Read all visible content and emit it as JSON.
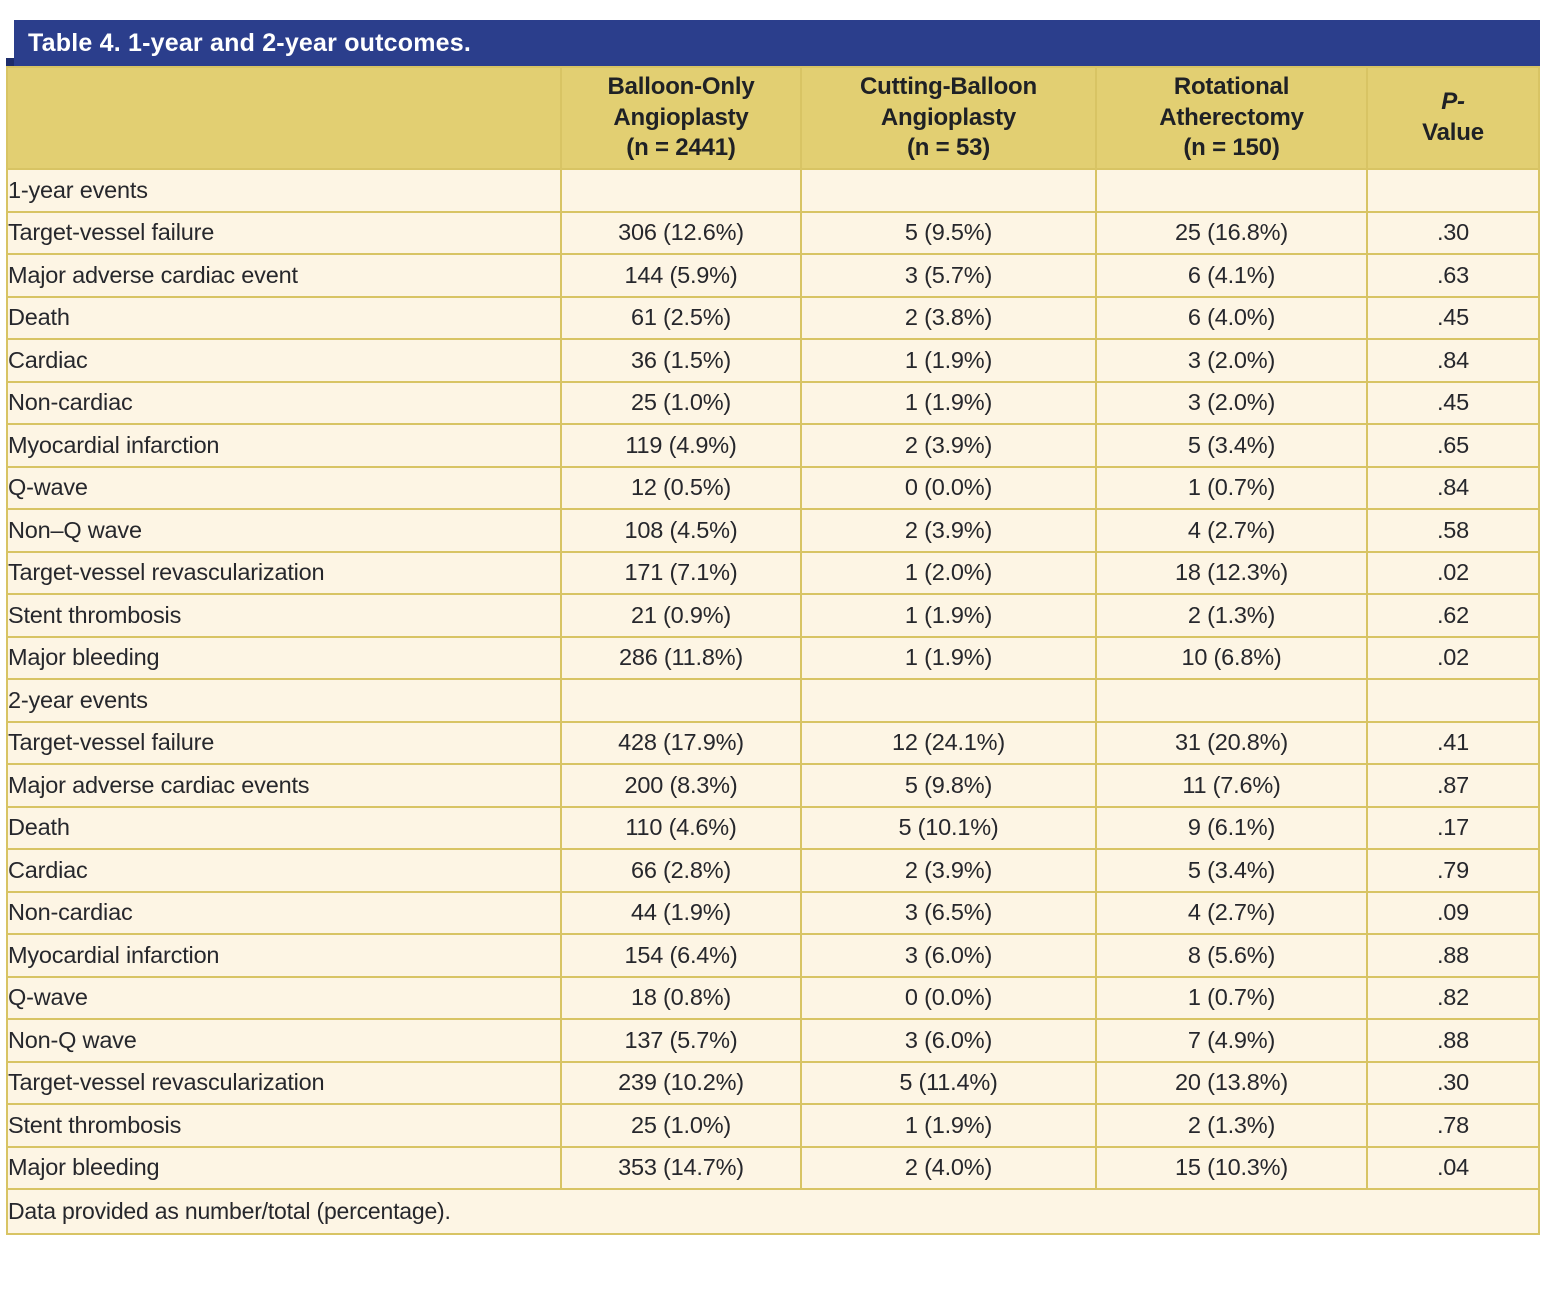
{
  "title": "Table 4. 1-year and 2-year outcomes.",
  "colors": {
    "title_bar_blue": "#2B3E8C",
    "title_fold_blue": "#1E2D6B",
    "header_gold": "#E2CF72",
    "row_cream": "#FDF5E4",
    "border_gold": "#D8C464",
    "text": "#26272C"
  },
  "chart_data": {
    "type": "table",
    "title": "Table 4. 1-year and 2-year outcomes.",
    "columns": [
      {
        "lines": [
          ""
        ],
        "italic_first_line": false
      },
      {
        "lines": [
          "Balloon-Only",
          "Angioplasty",
          "(n = 2441)"
        ],
        "italic_first_line": false
      },
      {
        "lines": [
          "Cutting-Balloon",
          "Angioplasty",
          "(n = 53)"
        ],
        "italic_first_line": false
      },
      {
        "lines": [
          "Rotational",
          "Atherectomy",
          "(n = 150)"
        ],
        "italic_first_line": false
      },
      {
        "lines": [
          "P-",
          "Value"
        ],
        "italic_first_line": true
      }
    ],
    "rows": [
      {
        "type": "section",
        "indent": 0,
        "label": "1-year events",
        "values": [
          "",
          "",
          "",
          ""
        ]
      },
      {
        "type": "data",
        "indent": 1,
        "label": "Target-vessel failure",
        "values": [
          "306 (12.6%)",
          "5 (9.5%)",
          "25 (16.8%)",
          ".30"
        ]
      },
      {
        "type": "data",
        "indent": 1,
        "label": "Major adverse cardiac event",
        "values": [
          "144 (5.9%)",
          "3 (5.7%)",
          "6 (4.1%)",
          ".63"
        ]
      },
      {
        "type": "data",
        "indent": 1,
        "label": "Death",
        "values": [
          "61 (2.5%)",
          "2 (3.8%)",
          "6 (4.0%)",
          ".45"
        ]
      },
      {
        "type": "data",
        "indent": 2,
        "label": "Cardiac",
        "values": [
          "36 (1.5%)",
          "1 (1.9%)",
          "3 (2.0%)",
          ".84"
        ]
      },
      {
        "type": "data",
        "indent": 2,
        "label": "Non-cardiac",
        "values": [
          "25 (1.0%)",
          "1 (1.9%)",
          "3 (2.0%)",
          ".45"
        ]
      },
      {
        "type": "data",
        "indent": 1,
        "label": "Myocardial infarction",
        "values": [
          "119 (4.9%)",
          "2 (3.9%)",
          "5 (3.4%)",
          ".65"
        ]
      },
      {
        "type": "data",
        "indent": 2,
        "label": "Q-wave",
        "values": [
          "12 (0.5%)",
          "0 (0.0%)",
          "1 (0.7%)",
          ".84"
        ]
      },
      {
        "type": "data",
        "indent": 2,
        "label": "Non–Q wave",
        "values": [
          "108 (4.5%)",
          "2 (3.9%)",
          "4 (2.7%)",
          ".58"
        ]
      },
      {
        "type": "data",
        "indent": 1,
        "label": "Target-vessel revascularization",
        "values": [
          "171 (7.1%)",
          "1 (2.0%)",
          "18 (12.3%)",
          ".02"
        ]
      },
      {
        "type": "data",
        "indent": 1,
        "label": "Stent thrombosis",
        "values": [
          "21 (0.9%)",
          "1 (1.9%)",
          "2 (1.3%)",
          ".62"
        ]
      },
      {
        "type": "data",
        "indent": 1,
        "label": "Major bleeding",
        "values": [
          "286 (11.8%)",
          "1 (1.9%)",
          "10 (6.8%)",
          ".02"
        ]
      },
      {
        "type": "section",
        "indent": 0,
        "label": "2-year events",
        "values": [
          "",
          "",
          "",
          ""
        ]
      },
      {
        "type": "data",
        "indent": 1,
        "label": "Target-vessel failure",
        "values": [
          "428 (17.9%)",
          "12 (24.1%)",
          "31 (20.8%)",
          ".41"
        ]
      },
      {
        "type": "data",
        "indent": 1,
        "label": "Major adverse cardiac events",
        "values": [
          "200 (8.3%)",
          "5 (9.8%)",
          "11 (7.6%)",
          ".87"
        ]
      },
      {
        "type": "data",
        "indent": 1,
        "label": "Death",
        "values": [
          "110 (4.6%)",
          "5 (10.1%)",
          "9 (6.1%)",
          ".17"
        ]
      },
      {
        "type": "data",
        "indent": 2,
        "label": "Cardiac",
        "values": [
          "66 (2.8%)",
          "2 (3.9%)",
          "5 (3.4%)",
          ".79"
        ]
      },
      {
        "type": "data",
        "indent": 2,
        "label": "Non-cardiac",
        "values": [
          "44 (1.9%)",
          "3 (6.5%)",
          "4 (2.7%)",
          ".09"
        ]
      },
      {
        "type": "data",
        "indent": 1,
        "label": "Myocardial infarction",
        "values": [
          "154 (6.4%)",
          "3 (6.0%)",
          "8 (5.6%)",
          ".88"
        ]
      },
      {
        "type": "data",
        "indent": 2,
        "label": "Q-wave",
        "values": [
          "18 (0.8%)",
          "0 (0.0%)",
          "1 (0.7%)",
          ".82"
        ]
      },
      {
        "type": "data",
        "indent": 2,
        "label": "Non-Q wave",
        "values": [
          "137 (5.7%)",
          "3 (6.0%)",
          "7 (4.9%)",
          ".88"
        ]
      },
      {
        "type": "data",
        "indent": 1,
        "label": "Target-vessel revascularization",
        "values": [
          "239 (10.2%)",
          "5 (11.4%)",
          "20 (13.8%)",
          ".30"
        ]
      },
      {
        "type": "data",
        "indent": 1,
        "label": "Stent thrombosis",
        "values": [
          "25 (1.0%)",
          "1 (1.9%)",
          "2 (1.3%)",
          ".78"
        ]
      },
      {
        "type": "data",
        "indent": 1,
        "label": "Major bleeding",
        "values": [
          "353 (14.7%)",
          "2 (4.0%)",
          "15 (10.3%)",
          ".04"
        ]
      }
    ],
    "footnote": "Data provided as number/total (percentage)."
  }
}
